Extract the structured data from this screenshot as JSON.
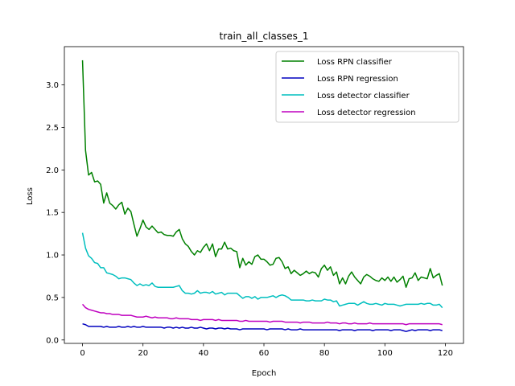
{
  "chart_data": {
    "type": "line",
    "title": "train_all_classes_1",
    "xlabel": "Epoch",
    "ylabel": "Loss",
    "xlim": [
      -6,
      126
    ],
    "ylim": [
      -0.04,
      3.45
    ],
    "xticks": [
      0,
      20,
      40,
      60,
      80,
      100,
      120
    ],
    "yticks": [
      0.0,
      0.5,
      1.0,
      1.5,
      2.0,
      2.5,
      3.0
    ],
    "ytick_labels": [
      "0.0",
      "0.5",
      "1.0",
      "1.5",
      "2.0",
      "2.5",
      "3.0"
    ],
    "grid": false,
    "legend_position": "top-right",
    "series": [
      {
        "name": "Loss RPN classifier",
        "color": "#008000",
        "x": [
          0,
          1,
          2,
          3,
          4,
          5,
          6,
          7,
          8,
          9,
          10,
          11,
          12,
          13,
          14,
          15,
          16,
          17,
          18,
          19,
          20,
          21,
          22,
          23,
          24,
          25,
          26,
          27,
          28,
          29,
          30,
          31,
          32,
          33,
          34,
          35,
          36,
          37,
          38,
          39,
          40,
          41,
          42,
          43,
          44,
          45,
          46,
          47,
          48,
          49,
          50,
          51,
          52,
          53,
          54,
          55,
          56,
          57,
          58,
          59,
          60,
          61,
          62,
          63,
          64,
          65,
          66,
          67,
          68,
          69,
          70,
          71,
          72,
          73,
          74,
          75,
          76,
          77,
          78,
          79,
          80,
          81,
          82,
          83,
          84,
          85,
          86,
          87,
          88,
          89,
          90,
          91,
          92,
          93,
          94,
          95,
          96,
          97,
          98,
          99,
          100,
          101,
          102,
          103,
          104,
          105,
          106,
          107,
          108,
          109,
          110,
          111,
          112,
          113,
          114,
          115,
          116,
          117,
          118,
          119
        ],
        "values": [
          3.29,
          2.23,
          1.94,
          1.97,
          1.86,
          1.87,
          1.83,
          1.61,
          1.73,
          1.61,
          1.58,
          1.54,
          1.59,
          1.62,
          1.48,
          1.55,
          1.51,
          1.36,
          1.22,
          1.31,
          1.41,
          1.33,
          1.3,
          1.34,
          1.3,
          1.26,
          1.27,
          1.24,
          1.23,
          1.23,
          1.22,
          1.27,
          1.3,
          1.19,
          1.13,
          1.1,
          1.04,
          1.0,
          1.05,
          1.03,
          1.09,
          1.13,
          1.05,
          1.13,
          0.98,
          1.07,
          1.07,
          1.15,
          1.07,
          1.08,
          1.05,
          1.04,
          0.85,
          0.96,
          0.88,
          0.92,
          0.89,
          0.98,
          1.0,
          0.95,
          0.95,
          0.92,
          0.88,
          0.89,
          0.96,
          0.97,
          0.92,
          0.84,
          0.86,
          0.78,
          0.82,
          0.79,
          0.76,
          0.78,
          0.81,
          0.78,
          0.8,
          0.79,
          0.74,
          0.84,
          0.88,
          0.82,
          0.86,
          0.76,
          0.8,
          0.66,
          0.73,
          0.66,
          0.75,
          0.8,
          0.74,
          0.7,
          0.66,
          0.74,
          0.77,
          0.75,
          0.72,
          0.7,
          0.69,
          0.73,
          0.7,
          0.74,
          0.69,
          0.74,
          0.68,
          0.71,
          0.75,
          0.62,
          0.72,
          0.73,
          0.79,
          0.7,
          0.74,
          0.73,
          0.72,
          0.84,
          0.73,
          0.76,
          0.78,
          0.64
        ]
      },
      {
        "name": "Loss RPN regression",
        "color": "#0000bf",
        "x": [
          0,
          1,
          2,
          3,
          4,
          5,
          6,
          7,
          8,
          9,
          10,
          11,
          12,
          13,
          14,
          15,
          16,
          17,
          18,
          19,
          20,
          21,
          22,
          23,
          24,
          25,
          26,
          27,
          28,
          29,
          30,
          31,
          32,
          33,
          34,
          35,
          36,
          37,
          38,
          39,
          40,
          41,
          42,
          43,
          44,
          45,
          46,
          47,
          48,
          49,
          50,
          51,
          52,
          53,
          54,
          55,
          56,
          57,
          58,
          59,
          60,
          61,
          62,
          63,
          64,
          65,
          66,
          67,
          68,
          69,
          70,
          71,
          72,
          73,
          74,
          75,
          76,
          77,
          78,
          79,
          80,
          81,
          82,
          83,
          84,
          85,
          86,
          87,
          88,
          89,
          90,
          91,
          92,
          93,
          94,
          95,
          96,
          97,
          98,
          99,
          100,
          101,
          102,
          103,
          104,
          105,
          106,
          107,
          108,
          109,
          110,
          111,
          112,
          113,
          114,
          115,
          116,
          117,
          118,
          119
        ],
        "values": [
          0.19,
          0.18,
          0.16,
          0.16,
          0.16,
          0.16,
          0.16,
          0.15,
          0.16,
          0.15,
          0.15,
          0.15,
          0.16,
          0.15,
          0.15,
          0.16,
          0.15,
          0.16,
          0.15,
          0.15,
          0.16,
          0.15,
          0.15,
          0.15,
          0.15,
          0.15,
          0.15,
          0.14,
          0.15,
          0.15,
          0.14,
          0.15,
          0.14,
          0.15,
          0.14,
          0.14,
          0.15,
          0.14,
          0.14,
          0.15,
          0.14,
          0.13,
          0.14,
          0.14,
          0.13,
          0.14,
          0.14,
          0.13,
          0.14,
          0.13,
          0.13,
          0.13,
          0.12,
          0.13,
          0.13,
          0.13,
          0.13,
          0.13,
          0.13,
          0.13,
          0.13,
          0.12,
          0.13,
          0.13,
          0.13,
          0.13,
          0.13,
          0.12,
          0.13,
          0.12,
          0.12,
          0.12,
          0.13,
          0.12,
          0.12,
          0.12,
          0.12,
          0.12,
          0.12,
          0.12,
          0.12,
          0.12,
          0.12,
          0.12,
          0.12,
          0.11,
          0.12,
          0.12,
          0.12,
          0.12,
          0.11,
          0.12,
          0.12,
          0.12,
          0.12,
          0.12,
          0.11,
          0.12,
          0.12,
          0.12,
          0.12,
          0.12,
          0.11,
          0.12,
          0.12,
          0.12,
          0.11,
          0.1,
          0.11,
          0.12,
          0.11,
          0.12,
          0.12,
          0.12,
          0.12,
          0.11,
          0.12,
          0.12,
          0.12,
          0.11
        ]
      },
      {
        "name": "Loss detector classifier",
        "color": "#00bfbf",
        "x": [
          0,
          1,
          2,
          3,
          4,
          5,
          6,
          7,
          8,
          9,
          10,
          11,
          12,
          13,
          14,
          15,
          16,
          17,
          18,
          19,
          20,
          21,
          22,
          23,
          24,
          25,
          26,
          27,
          28,
          29,
          30,
          31,
          32,
          33,
          34,
          35,
          36,
          37,
          38,
          39,
          40,
          41,
          42,
          43,
          44,
          45,
          46,
          47,
          48,
          49,
          50,
          51,
          52,
          53,
          54,
          55,
          56,
          57,
          58,
          59,
          60,
          61,
          62,
          63,
          64,
          65,
          66,
          67,
          68,
          69,
          70,
          71,
          72,
          73,
          74,
          75,
          76,
          77,
          78,
          79,
          80,
          81,
          82,
          83,
          84,
          85,
          86,
          87,
          88,
          89,
          90,
          91,
          92,
          93,
          94,
          95,
          96,
          97,
          98,
          99,
          100,
          101,
          102,
          103,
          104,
          105,
          106,
          107,
          108,
          109,
          110,
          111,
          112,
          113,
          114,
          115,
          116,
          117,
          118,
          119
        ],
        "values": [
          1.26,
          1.08,
          0.99,
          0.96,
          0.91,
          0.9,
          0.85,
          0.85,
          0.79,
          0.78,
          0.77,
          0.75,
          0.72,
          0.73,
          0.73,
          0.72,
          0.71,
          0.67,
          0.64,
          0.66,
          0.64,
          0.65,
          0.64,
          0.67,
          0.63,
          0.62,
          0.62,
          0.62,
          0.62,
          0.62,
          0.62,
          0.63,
          0.64,
          0.58,
          0.55,
          0.55,
          0.54,
          0.55,
          0.58,
          0.55,
          0.56,
          0.56,
          0.55,
          0.57,
          0.54,
          0.55,
          0.56,
          0.53,
          0.55,
          0.55,
          0.55,
          0.55,
          0.52,
          0.49,
          0.51,
          0.51,
          0.49,
          0.51,
          0.48,
          0.5,
          0.5,
          0.5,
          0.51,
          0.52,
          0.5,
          0.52,
          0.53,
          0.52,
          0.5,
          0.47,
          0.47,
          0.47,
          0.47,
          0.47,
          0.46,
          0.46,
          0.47,
          0.46,
          0.46,
          0.46,
          0.48,
          0.47,
          0.47,
          0.45,
          0.46,
          0.4,
          0.41,
          0.42,
          0.43,
          0.43,
          0.43,
          0.41,
          0.43,
          0.45,
          0.43,
          0.42,
          0.42,
          0.43,
          0.42,
          0.41,
          0.43,
          0.42,
          0.42,
          0.42,
          0.41,
          0.4,
          0.41,
          0.42,
          0.42,
          0.42,
          0.42,
          0.42,
          0.43,
          0.42,
          0.43,
          0.43,
          0.41,
          0.41,
          0.42,
          0.38
        ]
      },
      {
        "name": "Loss detector regression",
        "color": "#bf00bf",
        "x": [
          0,
          1,
          2,
          3,
          4,
          5,
          6,
          7,
          8,
          9,
          10,
          11,
          12,
          13,
          14,
          15,
          16,
          17,
          18,
          19,
          20,
          21,
          22,
          23,
          24,
          25,
          26,
          27,
          28,
          29,
          30,
          31,
          32,
          33,
          34,
          35,
          36,
          37,
          38,
          39,
          40,
          41,
          42,
          43,
          44,
          45,
          46,
          47,
          48,
          49,
          50,
          51,
          52,
          53,
          54,
          55,
          56,
          57,
          58,
          59,
          60,
          61,
          62,
          63,
          64,
          65,
          66,
          67,
          68,
          69,
          70,
          71,
          72,
          73,
          74,
          75,
          76,
          77,
          78,
          79,
          80,
          81,
          82,
          83,
          84,
          85,
          86,
          87,
          88,
          89,
          90,
          91,
          92,
          93,
          94,
          95,
          96,
          97,
          98,
          99,
          100,
          101,
          102,
          103,
          104,
          105,
          106,
          107,
          108,
          109,
          110,
          111,
          112,
          113,
          114,
          115,
          116,
          117,
          118,
          119
        ],
        "values": [
          0.42,
          0.38,
          0.36,
          0.35,
          0.34,
          0.33,
          0.32,
          0.32,
          0.31,
          0.31,
          0.3,
          0.3,
          0.3,
          0.29,
          0.29,
          0.29,
          0.29,
          0.28,
          0.27,
          0.27,
          0.27,
          0.28,
          0.27,
          0.26,
          0.27,
          0.26,
          0.26,
          0.26,
          0.26,
          0.25,
          0.25,
          0.26,
          0.25,
          0.25,
          0.25,
          0.25,
          0.24,
          0.24,
          0.24,
          0.23,
          0.24,
          0.24,
          0.24,
          0.24,
          0.23,
          0.24,
          0.23,
          0.23,
          0.23,
          0.23,
          0.23,
          0.23,
          0.22,
          0.22,
          0.23,
          0.22,
          0.22,
          0.22,
          0.22,
          0.22,
          0.22,
          0.22,
          0.21,
          0.22,
          0.22,
          0.22,
          0.22,
          0.21,
          0.21,
          0.21,
          0.21,
          0.21,
          0.2,
          0.21,
          0.21,
          0.21,
          0.2,
          0.2,
          0.2,
          0.2,
          0.2,
          0.21,
          0.2,
          0.2,
          0.2,
          0.19,
          0.2,
          0.2,
          0.19,
          0.19,
          0.2,
          0.19,
          0.19,
          0.19,
          0.19,
          0.2,
          0.19,
          0.19,
          0.19,
          0.19,
          0.19,
          0.19,
          0.19,
          0.19,
          0.19,
          0.19,
          0.19,
          0.18,
          0.19,
          0.19,
          0.19,
          0.19,
          0.19,
          0.19,
          0.19,
          0.19,
          0.19,
          0.19,
          0.19,
          0.18
        ]
      }
    ]
  }
}
